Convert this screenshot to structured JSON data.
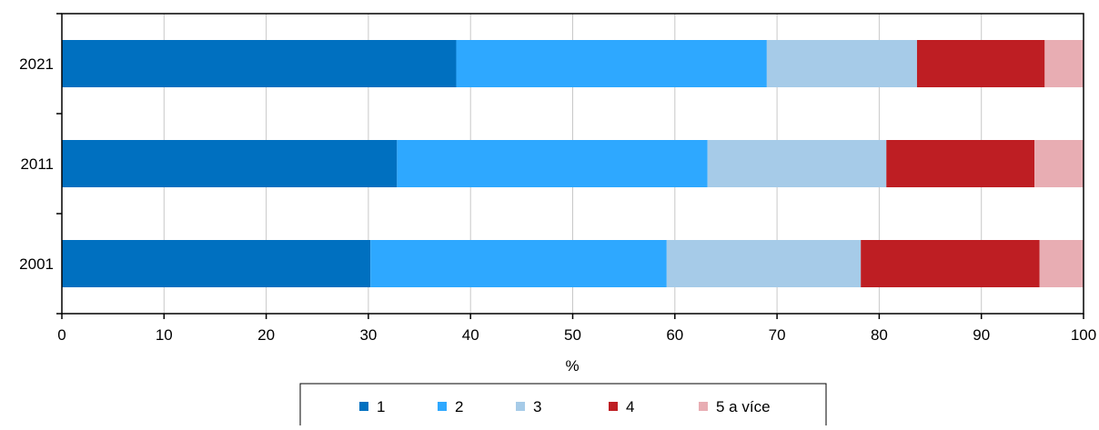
{
  "chart_data": {
    "type": "bar",
    "orientation": "horizontal",
    "stacked": true,
    "categories": [
      "2021",
      "2011",
      "2001"
    ],
    "series": [
      {
        "name": "1",
        "color": "#0070c0",
        "values": [
          38.6,
          32.8,
          30.2
        ]
      },
      {
        "name": "2",
        "color": "#2ea8ff",
        "values": [
          30.4,
          30.4,
          29.0
        ]
      },
      {
        "name": "3",
        "color": "#a6cbe8",
        "values": [
          14.7,
          17.5,
          19.0
        ]
      },
      {
        "name": "4",
        "color": "#be1e23",
        "values": [
          12.5,
          14.5,
          17.5
        ]
      },
      {
        "name": "5 a více",
        "color": "#e8adb3",
        "values": [
          3.8,
          4.8,
          4.3
        ]
      }
    ],
    "xlabel": "%",
    "xlim": [
      0,
      100
    ],
    "xticks": [
      "0",
      "10",
      "20",
      "30",
      "40",
      "50",
      "60",
      "70",
      "80",
      "90",
      "100"
    ],
    "grid": "vertical",
    "legend": "bottom"
  }
}
